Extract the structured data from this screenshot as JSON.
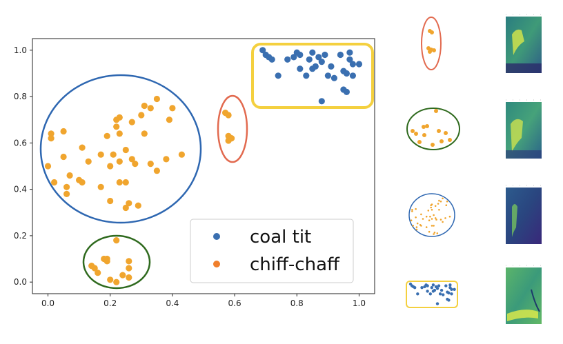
{
  "colors": {
    "coal_tit": "#3a6fb0",
    "chiff_chaff": "#f0a52e",
    "legend_chiff_chaff": "#f07f2c",
    "ring_blue": "#2e67b1",
    "ring_red": "#e26a4f",
    "ring_green": "#2f6a1e",
    "ring_yellow": "#f4d03f"
  },
  "chart_data": {
    "type": "scatter",
    "xlim": [
      -0.05,
      1.05
    ],
    "ylim": [
      -0.05,
      1.05
    ],
    "xticks": [
      "0.0",
      "0.2",
      "0.4",
      "0.6",
      "0.8",
      "1.0"
    ],
    "yticks": [
      "0.0",
      "0.2",
      "0.4",
      "0.6",
      "0.8",
      "1.0"
    ],
    "legend": {
      "position": "lower-right",
      "entries": [
        "coal tit",
        "chiff-chaff"
      ]
    },
    "series": [
      {
        "name": "coal tit",
        "points": [
          [
            0.69,
            1.0
          ],
          [
            0.7,
            0.98
          ],
          [
            0.71,
            0.97
          ],
          [
            0.72,
            0.96
          ],
          [
            0.74,
            0.89
          ],
          [
            0.77,
            0.96
          ],
          [
            0.79,
            0.97
          ],
          [
            0.8,
            0.99
          ],
          [
            0.81,
            0.98
          ],
          [
            0.81,
            0.92
          ],
          [
            0.83,
            0.89
          ],
          [
            0.84,
            0.96
          ],
          [
            0.85,
            0.99
          ],
          [
            0.85,
            0.92
          ],
          [
            0.86,
            0.93
          ],
          [
            0.87,
            0.97
          ],
          [
            0.88,
            0.95
          ],
          [
            0.88,
            0.78
          ],
          [
            0.89,
            0.98
          ],
          [
            0.9,
            0.89
          ],
          [
            0.91,
            0.93
          ],
          [
            0.92,
            0.88
          ],
          [
            0.94,
            0.98
          ],
          [
            0.95,
            0.83
          ],
          [
            0.95,
            0.91
          ],
          [
            0.96,
            0.82
          ],
          [
            0.96,
            0.9
          ],
          [
            0.97,
            0.99
          ],
          [
            0.97,
            0.96
          ],
          [
            0.98,
            0.89
          ],
          [
            0.98,
            0.94
          ],
          [
            1.0,
            0.94
          ]
        ]
      },
      {
        "name": "chiff-chaff",
        "points": [
          [
            0.0,
            0.5
          ],
          [
            0.01,
            0.64
          ],
          [
            0.01,
            0.62
          ],
          [
            0.02,
            0.43
          ],
          [
            0.05,
            0.54
          ],
          [
            0.05,
            0.65
          ],
          [
            0.06,
            0.41
          ],
          [
            0.06,
            0.38
          ],
          [
            0.07,
            0.46
          ],
          [
            0.1,
            0.44
          ],
          [
            0.11,
            0.43
          ],
          [
            0.11,
            0.58
          ],
          [
            0.13,
            0.52
          ],
          [
            0.14,
            0.07
          ],
          [
            0.15,
            0.06
          ],
          [
            0.16,
            0.04
          ],
          [
            0.17,
            0.41
          ],
          [
            0.17,
            0.55
          ],
          [
            0.18,
            0.1
          ],
          [
            0.19,
            0.63
          ],
          [
            0.19,
            0.1
          ],
          [
            0.19,
            0.09
          ],
          [
            0.2,
            0.5
          ],
          [
            0.2,
            0.35
          ],
          [
            0.2,
            0.01
          ],
          [
            0.21,
            0.55
          ],
          [
            0.22,
            0.7
          ],
          [
            0.22,
            0.18
          ],
          [
            0.22,
            0.0
          ],
          [
            0.22,
            0.67
          ],
          [
            0.23,
            0.71
          ],
          [
            0.23,
            0.43
          ],
          [
            0.23,
            0.52
          ],
          [
            0.23,
            0.64
          ],
          [
            0.24,
            0.03
          ],
          [
            0.25,
            0.57
          ],
          [
            0.25,
            0.43
          ],
          [
            0.25,
            0.32
          ],
          [
            0.26,
            0.34
          ],
          [
            0.26,
            0.09
          ],
          [
            0.26,
            0.06
          ],
          [
            0.26,
            0.02
          ],
          [
            0.27,
            0.53
          ],
          [
            0.27,
            0.69
          ],
          [
            0.28,
            0.51
          ],
          [
            0.29,
            0.33
          ],
          [
            0.3,
            0.72
          ],
          [
            0.31,
            0.64
          ],
          [
            0.31,
            0.76
          ],
          [
            0.33,
            0.51
          ],
          [
            0.33,
            0.75
          ],
          [
            0.35,
            0.48
          ],
          [
            0.35,
            0.79
          ],
          [
            0.38,
            0.53
          ],
          [
            0.39,
            0.7
          ],
          [
            0.4,
            0.75
          ],
          [
            0.43,
            0.55
          ],
          [
            0.57,
            0.73
          ],
          [
            0.58,
            0.72
          ],
          [
            0.58,
            0.63
          ],
          [
            0.58,
            0.61
          ],
          [
            0.59,
            0.62
          ]
        ]
      }
    ],
    "annotations": [
      {
        "shape": "ellipse",
        "color": "ring_blue",
        "encloses": "chiff-chaff cluster"
      },
      {
        "shape": "ellipse",
        "color": "ring_red",
        "encloses": "chiff-chaff cluster"
      },
      {
        "shape": "ellipse",
        "color": "ring_green",
        "encloses": "chiff-chaff cluster"
      },
      {
        "shape": "rounded-rectangle",
        "color": "ring_yellow",
        "encloses": "coal tit cluster"
      }
    ]
  },
  "side_panels": [
    {
      "ring": "ring_red",
      "shape": "ellipse",
      "spectrogram": "bright-green-spectrogram"
    },
    {
      "ring": "ring_green",
      "shape": "ellipse",
      "spectrogram": "green-spectrogram"
    },
    {
      "ring": "ring_blue",
      "shape": "ellipse",
      "spectrogram": "dark-blue-spectrogram"
    },
    {
      "ring": "ring_yellow",
      "shape": "rounded-rectangle",
      "spectrogram": "noisy-green-spectrogram"
    }
  ]
}
